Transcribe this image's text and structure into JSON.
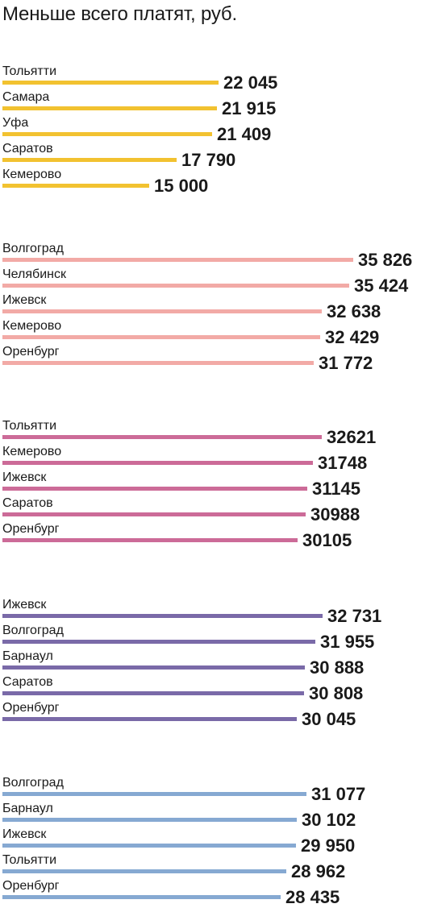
{
  "title": "Меньше всего платят, руб.",
  "chart_data": [
    {
      "type": "bar",
      "color": "#f2c230",
      "categories": [
        "Тольятти",
        "Самара",
        "Уфа",
        "Саратов",
        "Кемерово"
      ],
      "values": [
        22045,
        21915,
        21409,
        17790,
        15000
      ],
      "value_labels": [
        "22 045",
        "21 915",
        "21 409",
        "17 790",
        "15 000"
      ]
    },
    {
      "type": "bar",
      "color": "#f2aaa6",
      "categories": [
        "Волгоград",
        "Челябинск",
        "Ижевск",
        "Кемерово",
        "Оренбург"
      ],
      "values": [
        35826,
        35424,
        32638,
        32429,
        31772
      ],
      "value_labels": [
        "35 826",
        "35 424",
        "32 638",
        "32 429",
        "31 772"
      ]
    },
    {
      "type": "bar",
      "color": "#cc6b98",
      "categories": [
        "Тольятти",
        "Кемерово",
        "Ижевск",
        "Саратов",
        "Оренбург"
      ],
      "values": [
        32621,
        31748,
        31145,
        30988,
        30105
      ],
      "value_labels": [
        "32621",
        "31748",
        "31145",
        "30988",
        "30105"
      ]
    },
    {
      "type": "bar",
      "color": "#7a6aa8",
      "categories": [
        "Ижевск",
        "Волгоград",
        "Барнаул",
        "Саратов",
        "Оренбург"
      ],
      "values": [
        32731,
        31955,
        30888,
        30808,
        30045
      ],
      "value_labels": [
        "32 731",
        "31 955",
        "30 888",
        "30 808",
        "30 045"
      ]
    },
    {
      "type": "bar",
      "color": "#86a9d2",
      "categories": [
        "Волгоград",
        "Барнаул",
        "Ижевск",
        "Тольятти",
        "Оренбург"
      ],
      "values": [
        31077,
        30102,
        29950,
        28962,
        28435
      ],
      "value_labels": [
        "31 077",
        "30 102",
        "29 950",
        "28 962",
        "28 435"
      ]
    }
  ]
}
